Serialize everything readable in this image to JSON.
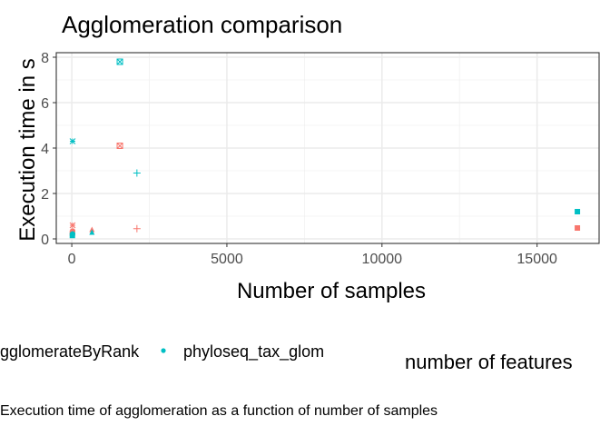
{
  "chart_data": {
    "type": "scatter",
    "title": "Agglomeration comparison",
    "xlabel": "Number of samples",
    "ylabel": "Execution time in s",
    "xlim": [
      -500,
      17000
    ],
    "ylim": [
      -0.2,
      8.2
    ],
    "xticks": [
      0,
      5000,
      10000,
      15000
    ],
    "xtick_labels": [
      "0",
      "5000",
      "10000",
      "15000"
    ],
    "yticks": [
      0,
      2,
      4,
      6,
      8
    ],
    "ytick_labels": [
      "0",
      "2",
      "4",
      "6",
      "8"
    ],
    "grid": true,
    "legend_position": "bottom",
    "legend_title": "",
    "colors": {
      "agglomerateByRank": "#f8766d",
      "phyloseq_tax_glom": "#00bfc4"
    },
    "series": [
      {
        "name": "agglomerateByRank",
        "color": "#f8766d",
        "points": [
          {
            "x": 19,
            "y": 0.25,
            "shape": "square"
          },
          {
            "x": 26,
            "y": 0.35,
            "shape": "circle"
          },
          {
            "x": 26,
            "y": 0.6,
            "shape": "asterisk"
          },
          {
            "x": 650,
            "y": 0.4,
            "shape": "triangle"
          },
          {
            "x": 1550,
            "y": 4.1,
            "shape": "square-x"
          },
          {
            "x": 2100,
            "y": 0.45,
            "shape": "plus"
          },
          {
            "x": 16300,
            "y": 0.48,
            "shape": "square"
          }
        ]
      },
      {
        "name": "phyloseq_tax_glom",
        "color": "#00bfc4",
        "points": [
          {
            "x": 19,
            "y": 0.15,
            "shape": "square"
          },
          {
            "x": 26,
            "y": 0.22,
            "shape": "circle"
          },
          {
            "x": 26,
            "y": 4.3,
            "shape": "asterisk"
          },
          {
            "x": 650,
            "y": 0.28,
            "shape": "triangle"
          },
          {
            "x": 1550,
            "y": 7.8,
            "shape": "square-x"
          },
          {
            "x": 2100,
            "y": 2.9,
            "shape": "plus"
          },
          {
            "x": 16300,
            "y": 1.2,
            "shape": "square"
          }
        ]
      }
    ],
    "secondary_legend_title": "number of features"
  },
  "legend_labels": [
    "agglomerateByRank",
    "phyloseq_tax_glom"
  ],
  "caption": "Execution time of agglomeration as a function of number of samples"
}
